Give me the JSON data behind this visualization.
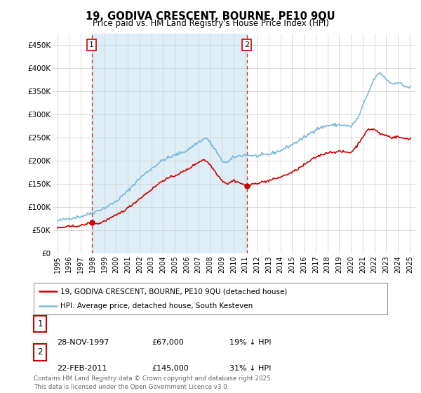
{
  "title": "19, GODIVA CRESCENT, BOURNE, PE10 9QU",
  "subtitle": "Price paid vs. HM Land Registry's House Price Index (HPI)",
  "legend_line1": "19, GODIVA CRESCENT, BOURNE, PE10 9QU (detached house)",
  "legend_line2": "HPI: Average price, detached house, South Kesteven",
  "table_rows": [
    {
      "num": "1",
      "date": "28-NOV-1997",
      "price": "£67,000",
      "hpi": "19% ↓ HPI"
    },
    {
      "num": "2",
      "date": "22-FEB-2011",
      "price": "£145,000",
      "hpi": "31% ↓ HPI"
    }
  ],
  "footer": "Contains HM Land Registry data © Crown copyright and database right 2025.\nThis data is licensed under the Open Government Licence v3.0.",
  "sale1_year": 1997.92,
  "sale1_price": 67000,
  "sale2_year": 2011.12,
  "sale2_price": 145000,
  "hpi_color": "#7ab8d9",
  "hpi_fill_color": "#ddeef7",
  "price_color": "#cc0000",
  "vline_color": "#cc0000",
  "grid_color": "#cccccc",
  "background_color": "#ffffff",
  "chart_bg_color": "#ffffff",
  "ylim": [
    0,
    475000
  ],
  "xlim_start": 1994.6,
  "xlim_end": 2025.5,
  "yticks": [
    0,
    50000,
    100000,
    150000,
    200000,
    250000,
    300000,
    350000,
    400000,
    450000
  ],
  "ytick_labels": [
    "£0",
    "£50K",
    "£100K",
    "£150K",
    "£200K",
    "£250K",
    "£300K",
    "£350K",
    "£400K",
    "£450K"
  ],
  "xtick_years": [
    1995,
    1996,
    1997,
    1998,
    1999,
    2000,
    2001,
    2002,
    2003,
    2004,
    2005,
    2006,
    2007,
    2008,
    2009,
    2010,
    2011,
    2012,
    2013,
    2014,
    2015,
    2016,
    2017,
    2018,
    2019,
    2020,
    2021,
    2022,
    2023,
    2024,
    2025
  ],
  "hpi_anchors_x": [
    1995.0,
    1996.0,
    1997.0,
    1998.0,
    1999.0,
    2000.0,
    2001.0,
    2002.0,
    2003.0,
    2004.0,
    2005.0,
    2006.0,
    2007.0,
    2007.7,
    2008.5,
    2009.0,
    2009.5,
    2010.0,
    2011.0,
    2012.0,
    2013.0,
    2014.0,
    2015.0,
    2016.0,
    2017.0,
    2018.0,
    2019.0,
    2020.0,
    2020.6,
    2021.0,
    2021.5,
    2022.0,
    2022.5,
    2023.0,
    2023.5,
    2024.0,
    2024.5,
    2025.0
  ],
  "hpi_anchors_y": [
    70000,
    76000,
    80000,
    88000,
    98000,
    112000,
    135000,
    162000,
    183000,
    202000,
    212000,
    222000,
    240000,
    250000,
    222000,
    200000,
    196000,
    208000,
    213000,
    210000,
    214000,
    222000,
    235000,
    250000,
    268000,
    276000,
    278000,
    274000,
    292000,
    318000,
    348000,
    378000,
    390000,
    376000,
    366000,
    370000,
    362000,
    358000
  ],
  "price_anchors_x": [
    1995.0,
    1996.0,
    1997.0,
    1997.92,
    1998.5,
    1999.0,
    2000.0,
    2001.0,
    2002.0,
    2003.0,
    2004.0,
    2005.0,
    2006.0,
    2007.0,
    2007.5,
    2008.0,
    2008.5,
    2009.0,
    2009.5,
    2010.0,
    2010.5,
    2011.12,
    2011.5,
    2012.0,
    2013.0,
    2014.0,
    2015.0,
    2016.0,
    2017.0,
    2018.0,
    2019.0,
    2020.0,
    2020.5,
    2021.0,
    2021.5,
    2022.0,
    2022.5,
    2023.0,
    2023.5,
    2024.0,
    2024.5,
    2025.0
  ],
  "price_anchors_y": [
    55000,
    58000,
    60000,
    67000,
    64000,
    70000,
    82000,
    98000,
    118000,
    138000,
    158000,
    168000,
    180000,
    197000,
    203000,
    192000,
    175000,
    158000,
    150000,
    158000,
    153000,
    145000,
    148000,
    152000,
    157000,
    165000,
    175000,
    191000,
    208000,
    218000,
    220000,
    218000,
    232000,
    252000,
    268000,
    268000,
    258000,
    255000,
    250000,
    252000,
    248000,
    248000
  ]
}
